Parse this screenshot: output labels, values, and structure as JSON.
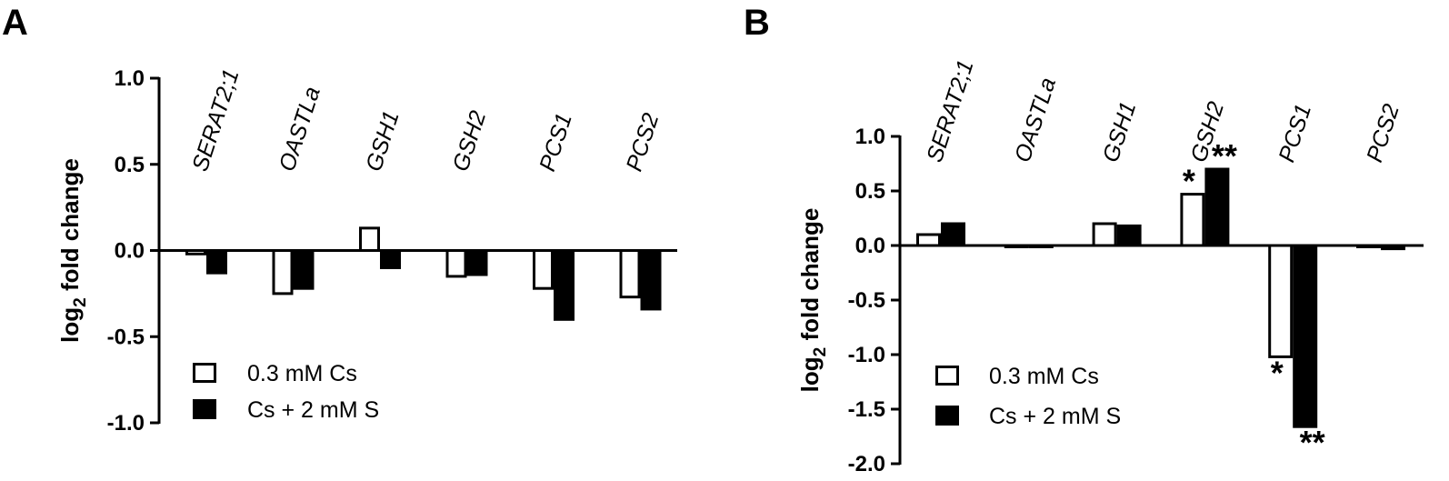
{
  "chart_data": [
    {
      "panel": "A",
      "type": "bar",
      "ylabel": "log2 fold change",
      "ylabel_main": "log",
      "ylabel_sub": "2",
      "ylabel_rest": " fold change",
      "ylim": [
        -1.0,
        1.0
      ],
      "yticks": [
        1.0,
        0.5,
        0.0,
        -0.5,
        -1.0
      ],
      "ytick_labels": [
        "1.0",
        "0.5",
        "0.0",
        "-0.5",
        "-1.0"
      ],
      "categories": [
        "SERAT2;1",
        "OASTLa",
        "GSH1",
        "GSH2",
        "PCS1",
        "PCS2"
      ],
      "series": [
        {
          "name": "0.3 mM Cs",
          "fill": "#ffffff",
          "values": [
            -0.02,
            -0.25,
            0.13,
            -0.15,
            -0.22,
            -0.27
          ]
        },
        {
          "name": "Cs + 2 mM S",
          "fill": "#000000",
          "values": [
            -0.13,
            -0.22,
            -0.1,
            -0.14,
            -0.4,
            -0.34
          ]
        }
      ],
      "annotations": [],
      "legend_position": "bottom-left"
    },
    {
      "panel": "B",
      "type": "bar",
      "ylabel": "log2 fold change",
      "ylabel_main": "log",
      "ylabel_sub": "2",
      "ylabel_rest": " fold change",
      "ylim": [
        -2.0,
        1.0
      ],
      "yticks": [
        1.0,
        0.5,
        0.0,
        -0.5,
        -1.0,
        -1.5,
        -2.0
      ],
      "ytick_labels": [
        "1.0",
        "0.5",
        "0.0",
        "-0.5",
        "-1.0",
        "-1.5",
        "-2.0"
      ],
      "categories": [
        "SERAT2;1",
        "OASTLa",
        "GSH1",
        "GSH2",
        "PCS1",
        "PCS2"
      ],
      "series": [
        {
          "name": "0.3 mM Cs",
          "fill": "#ffffff",
          "values": [
            0.1,
            0.0,
            0.2,
            0.47,
            -1.02,
            -0.01
          ]
        },
        {
          "name": "Cs + 2 mM S",
          "fill": "#000000",
          "values": [
            0.2,
            -0.01,
            0.18,
            0.7,
            -1.66,
            -0.03
          ]
        }
      ],
      "annotations": [
        {
          "text": "*",
          "category": 3,
          "series": 0,
          "position": "above"
        },
        {
          "text": "**",
          "category": 3,
          "series": 1,
          "position": "above"
        },
        {
          "text": "*",
          "category": 4,
          "series": 0,
          "position": "below"
        },
        {
          "text": "**",
          "category": 4,
          "series": 1,
          "position": "below"
        }
      ],
      "legend_position": "bottom-left"
    }
  ]
}
